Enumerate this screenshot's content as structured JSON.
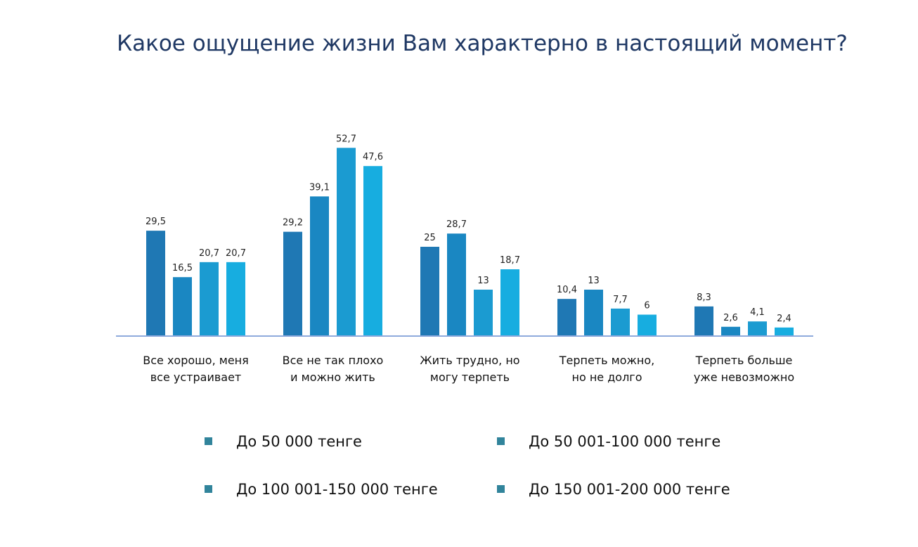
{
  "chart_data": {
    "type": "bar",
    "title": "Какое ощущение жизни Вам характерно в настоящий момент?",
    "categories": [
      [
        "Все хорошо,  меня",
        "все устраивает"
      ],
      [
        "Все не так плохо",
        "и можно жить"
      ],
      [
        "Жить трудно,  но",
        "могу терпеть"
      ],
      [
        "Терпеть можно,",
        "но не долго"
      ],
      [
        "Терпеть больше",
        "уже невозможно"
      ]
    ],
    "series": [
      {
        "name": "До 50 000 тенге",
        "color": "#1f78b4",
        "values": [
          29.5,
          29.2,
          25,
          10.4,
          8.3
        ],
        "labels": [
          "29,5",
          "29,2",
          "25",
          "10,4",
          "8,3"
        ]
      },
      {
        "name": "До 50 001-100 000 тенге",
        "color": "#1a87c2",
        "values": [
          16.5,
          39.1,
          28.7,
          13,
          2.6
        ],
        "labels": [
          "16,5",
          "39,1",
          "28,7",
          "13",
          "2,6"
        ]
      },
      {
        "name": "До 100 001-150 000 тенге",
        "color": "#1b9bd1",
        "values": [
          20.7,
          52.7,
          13,
          7.7,
          4.1
        ],
        "labels": [
          "20,7",
          "52,7",
          "13",
          "7,7",
          "4,1"
        ]
      },
      {
        "name": "До 150 001-200 000 тенге",
        "color": "#17ade0",
        "values": [
          20.7,
          47.6,
          18.7,
          6,
          2.4
        ],
        "labels": [
          "20,7",
          "47,6",
          "18,7",
          "6",
          "2,4"
        ]
      }
    ],
    "legend_marker_color": "#31849b",
    "axis_color": "#8faadc",
    "ylim": [
      0,
      55
    ],
    "legend_position": "bottom"
  }
}
